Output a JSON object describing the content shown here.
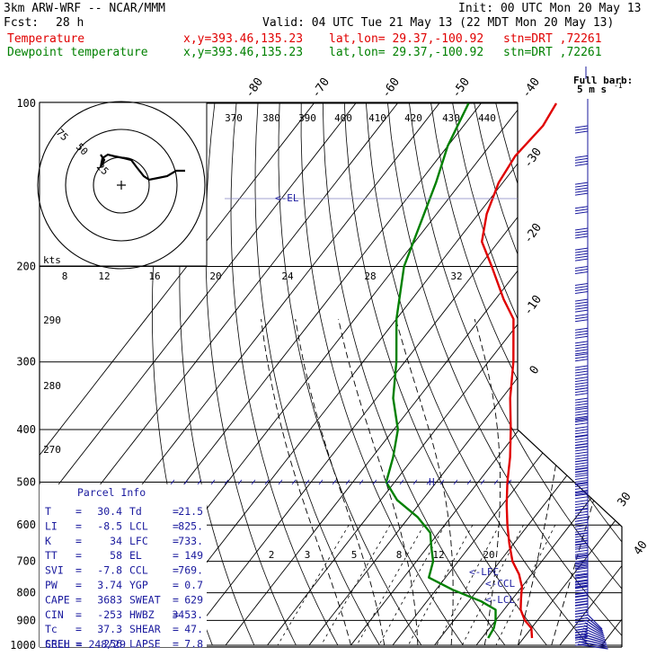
{
  "header": {
    "model": "3km ARW-WRF -- NCAR/MMM",
    "init": "Init: 00 UTC Mon 20 May 13",
    "fcst_label": "Fcst:",
    "fcst_value": "28 h",
    "valid": "Valid: 04 UTC Tue 21 May 13 (22 MDT Mon 20 May 13)",
    "temp_label": "Temperature",
    "dew_label": "Dewpoint temperature",
    "xy": "x,y=393.46,135.23",
    "latlon": "lat,lon= 29.37,-100.92",
    "stn": "stn=DRT ,72261",
    "colors": {
      "temperature": "#e00000",
      "dewpoint": "#008000",
      "annotations": "#1a1a9e"
    }
  },
  "chart_data": {
    "type": "line",
    "skew": true,
    "pressure_levels": [
      100,
      200,
      300,
      400,
      500,
      600,
      700,
      800,
      900,
      1000
    ],
    "pressure_range_hpa": [
      100,
      1000
    ],
    "pressure_scale": "log",
    "isotherm_labels": [
      "-80",
      "-70",
      "-60",
      "-50",
      "-40",
      "-30",
      "-20",
      "-10",
      "0",
      "30",
      "40"
    ],
    "theta_labels": [
      "370",
      "380",
      "390",
      "400",
      "410",
      "420",
      "430",
      "440"
    ],
    "theta_left_labels": [
      "290",
      "280",
      "270"
    ],
    "mixing_ratio_labels": [
      "2",
      "3",
      "5",
      "8",
      "12",
      "20"
    ],
    "series": [
      {
        "name": "Temperature",
        "color": "#e00000",
        "points": [
          [
            970,
            32
          ],
          [
            930,
            30
          ],
          [
            900,
            27
          ],
          [
            860,
            24
          ],
          [
            820,
            22
          ],
          [
            780,
            20
          ],
          [
            740,
            17
          ],
          [
            700,
            13
          ],
          [
            650,
            9
          ],
          [
            600,
            5
          ],
          [
            550,
            1
          ],
          [
            500,
            -3
          ],
          [
            450,
            -7
          ],
          [
            400,
            -12
          ],
          [
            350,
            -18
          ],
          [
            300,
            -24
          ],
          [
            250,
            -32
          ],
          [
            230,
            -38
          ],
          [
            200,
            -47
          ],
          [
            180,
            -54
          ],
          [
            160,
            -58
          ],
          [
            140,
            -61
          ],
          [
            125,
            -62
          ],
          [
            110,
            -61
          ],
          [
            100,
            -62
          ]
        ]
      },
      {
        "name": "Dewpoint temperature",
        "color": "#008000",
        "points": [
          [
            970,
            21.5
          ],
          [
            930,
            21
          ],
          [
            900,
            20
          ],
          [
            860,
            18
          ],
          [
            830,
            13
          ],
          [
            790,
            4
          ],
          [
            750,
            -4
          ],
          [
            700,
            -6
          ],
          [
            660,
            -9
          ],
          [
            620,
            -12
          ],
          [
            580,
            -18
          ],
          [
            540,
            -26
          ],
          [
            500,
            -32
          ],
          [
            450,
            -35
          ],
          [
            400,
            -39
          ],
          [
            350,
            -46
          ],
          [
            300,
            -52
          ],
          [
            250,
            -60
          ],
          [
            200,
            -68
          ],
          [
            160,
            -73
          ],
          [
            140,
            -76
          ],
          [
            120,
            -80
          ],
          [
            100,
            -83
          ]
        ]
      }
    ],
    "annotations": {
      "el": "<-EL",
      "lfc": "<-LFC",
      "ccl": "<-CCL",
      "lcl": "<-LCL",
      "h_mark": "H"
    }
  },
  "hodograph": {
    "speed_label": "kts",
    "ring_labels": [
      "75",
      "50",
      "25"
    ],
    "speed_ticks": [
      "8",
      "12",
      "16",
      "20",
      "24",
      "28",
      "32"
    ]
  },
  "wind_barbs": {
    "legend_title": "Full barb:",
    "legend_value": "5 m s",
    "legend_exp": "-1",
    "levels": [
      110,
      125,
      140,
      155,
      170,
      185,
      200,
      215,
      230,
      245,
      260,
      275,
      290,
      305,
      320,
      335,
      350,
      365,
      380,
      395,
      410,
      425,
      440,
      455,
      470,
      485,
      500,
      520,
      540,
      560,
      580,
      600,
      620,
      640,
      660,
      680,
      700,
      720,
      740,
      760,
      780,
      800,
      820,
      840,
      860,
      880,
      900,
      920,
      940,
      960
    ]
  },
  "parcel_info": {
    "title": "Parcel Info",
    "rows": [
      {
        "k1": "T",
        "v1": "30.4",
        "k2": "Td",
        "v2": "21.5"
      },
      {
        "k1": "LI",
        "v1": "-8.5",
        "k2": "LCL",
        "v2": "825."
      },
      {
        "k1": "K",
        "v1": "34",
        "k2": "LFC",
        "v2": "733."
      },
      {
        "k1": "TT",
        "v1": "58",
        "k2": "EL",
        "v2": "149"
      },
      {
        "k1": "SVI",
        "v1": "-7.8",
        "k2": "CCL",
        "v2": "769."
      },
      {
        "k1": "PW",
        "v1": "3.74",
        "k2": "YGP",
        "v2": "0.7"
      },
      {
        "k1": "CAPE",
        "v1": "3683",
        "k2": "SWEAT",
        "v2": "629"
      },
      {
        "k1": "CIN",
        "v1": "-253",
        "k2": "HWBZ",
        "v2": "3453."
      },
      {
        "k1": "Tc",
        "v1": "37.3",
        "k2": "SHEAR",
        "v2": "47."
      },
      {
        "k1": "SREH",
        "v1": "256",
        "k2": "LAPSE",
        "v2": "7.8"
      }
    ],
    "cell": "CELL = 248/29"
  }
}
